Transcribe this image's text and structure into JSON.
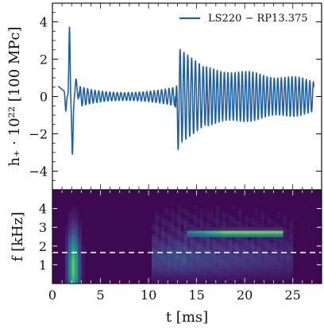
{
  "chart_data": [
    {
      "type": "line",
      "panel": "strain",
      "ylabel": "h₊ · 10²² [100 MPc]",
      "xlim": [
        0,
        28
      ],
      "ylim": [
        -5,
        5
      ],
      "y_ticks": [
        -4,
        -2,
        0,
        2,
        4
      ],
      "y_tick_labels": [
        "−4",
        "−2",
        "0",
        "2",
        "4"
      ],
      "legend_placement": "top-right",
      "series": [
        {
          "name": "LS220 − RP13.375",
          "color": "#2060a4",
          "segments": [
            {
              "t0": 0.6,
              "t1": 1.2,
              "freq": 0.0,
              "amp": 0.55,
              "kind": "rise"
            },
            {
              "t0": 1.2,
              "t1": 2.8,
              "freq": 0.9,
              "amp": 3.5,
              "kind": "burst",
              "peak_plus": 3.9,
              "peak_minus": -2.8
            },
            {
              "t0": 2.8,
              "t1": 12.8,
              "freq": 2.6,
              "amp_start": 0.45,
              "amp_mid": 0.1,
              "amp_end": 0.5,
              "kind": "ringdown"
            },
            {
              "t0": 12.8,
              "t1": 16.0,
              "freq": 2.5,
              "amp_start": 2.7,
              "amp_end": 1.6,
              "kind": "bounce",
              "peak_plus": 2.7,
              "peak_minus": -2.5
            },
            {
              "t0": 16.0,
              "t1": 27.2,
              "freq": 2.7,
              "amp_start": 1.5,
              "amp_end": 0.85,
              "kind": "oscillation"
            }
          ]
        }
      ]
    },
    {
      "type": "heatmap",
      "panel": "spectrogram",
      "xlabel": "t [ms]",
      "ylabel": "f [kHz]",
      "xlim": [
        0,
        28
      ],
      "ylim": [
        0,
        5
      ],
      "x_ticks": [
        0,
        5,
        10,
        15,
        20,
        25
      ],
      "x_tick_labels": [
        "0",
        "5",
        "10",
        "15",
        "20",
        "25"
      ],
      "y_ticks": [
        1,
        2,
        3,
        4
      ],
      "y_tick_labels": [
        "1",
        "2",
        "3",
        "4"
      ],
      "reference_line_khz": 1.65,
      "colormap": [
        "#3d0a52",
        "#46337e",
        "#365c8d",
        "#277f8e",
        "#1fa187",
        "#4ac16d",
        "#a0da39",
        "#fde725"
      ],
      "features": [
        {
          "t": [
            1.4,
            3.2
          ],
          "f": [
            0.2,
            4.6
          ],
          "peak": 0.75
        },
        {
          "t": [
            10.2,
            25.0
          ],
          "f": [
            0.3,
            4.2
          ],
          "peak": 0.35
        },
        {
          "t": [
            14.0,
            24.0
          ],
          "f": [
            2.55,
            2.85
          ],
          "peak": 0.85,
          "band": "ridge"
        }
      ]
    }
  ]
}
